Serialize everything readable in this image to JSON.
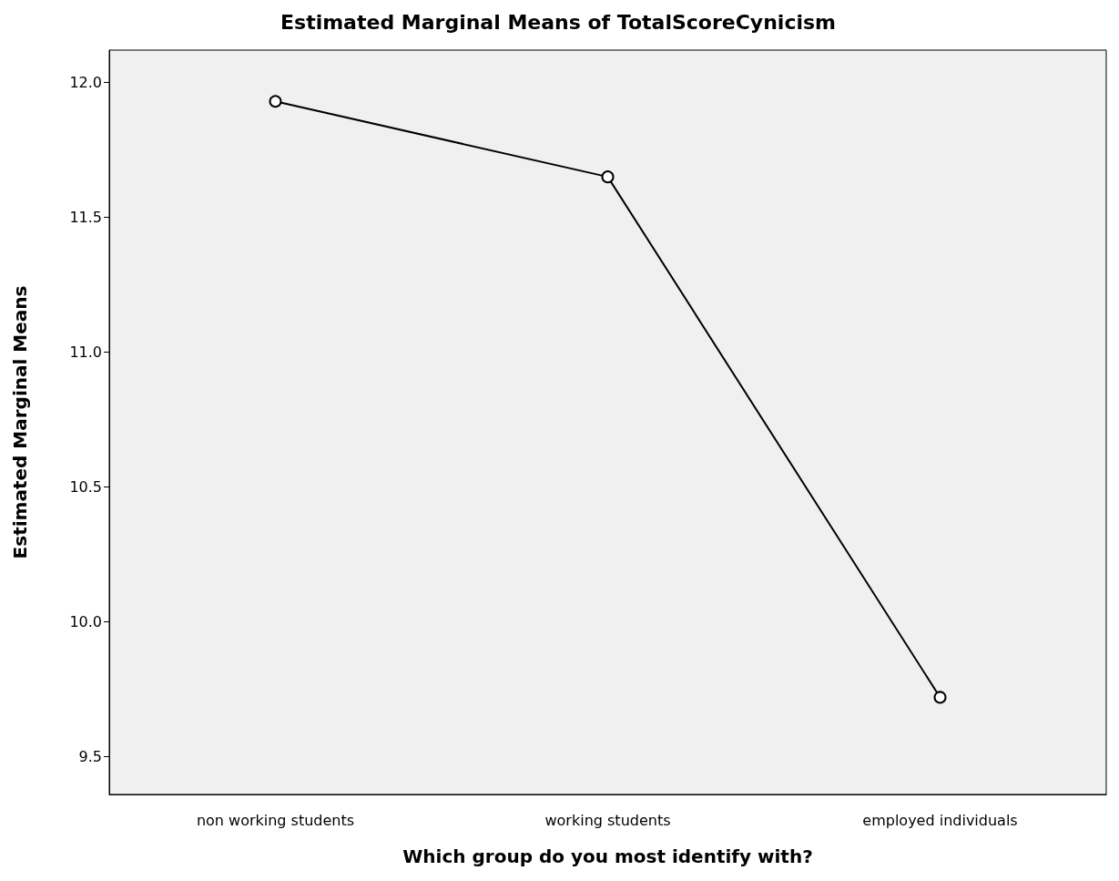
{
  "chart_data": {
    "type": "line",
    "title": "Estimated Marginal Means of TotalScoreCynicism",
    "xlabel": "Which group do you most identify with?",
    "ylabel": "Estimated Marginal Means",
    "categories": [
      "non working students",
      "working students",
      "employed individuals"
    ],
    "series": [
      {
        "color": "#000000",
        "values": [
          11.93,
          11.65,
          9.72
        ]
      }
    ],
    "ylim": [
      9.36,
      12.12
    ],
    "yticks": [
      {
        "value": 9.5,
        "label": "9.5"
      },
      {
        "value": 10,
        "label": "10.0"
      },
      {
        "value": 10.5,
        "label": "10.5"
      },
      {
        "value": 11,
        "label": "11.0"
      },
      {
        "value": 11.5,
        "label": "11.5"
      },
      {
        "value": 12,
        "label": "12.0"
      }
    ],
    "grid": false,
    "marker": "circle",
    "line_style": "solid"
  }
}
